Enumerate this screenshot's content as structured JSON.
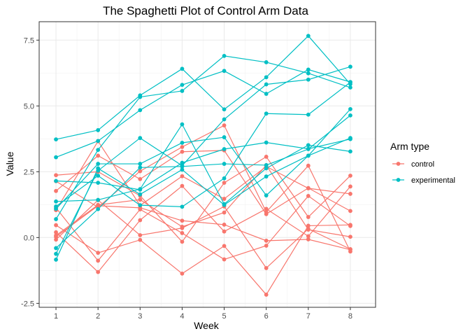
{
  "chart_data": {
    "type": "line",
    "title": "The Spaghetti Plot of Control Arm Data",
    "xlabel": "Week",
    "ylabel": "Value",
    "x": [
      1,
      2,
      3,
      4,
      5,
      6,
      7,
      8
    ],
    "xlim": [
      0.6,
      8.6
    ],
    "ylim": [
      -2.65,
      8.2
    ],
    "x_ticks": [
      "1",
      "2",
      "3",
      "4",
      "5",
      "6",
      "7",
      "8"
    ],
    "y_ticks": [
      -2.5,
      0.0,
      2.5,
      5.0,
      7.5
    ],
    "y_tick_labels": [
      "-2.5",
      "0.0",
      "2.5",
      "5.0",
      "7.5"
    ],
    "grid": true,
    "legend": {
      "title": "Arm type",
      "placement": "right",
      "entries": [
        {
          "label": "control",
          "color": "#F8766D"
        },
        {
          "label": "experimental",
          "color": "#00BFC4"
        }
      ]
    },
    "colors": {
      "control": "#F8766D",
      "experimental": "#00BFC4"
    },
    "series": [
      {
        "group": "control",
        "values": [
          0.2,
          -1.31,
          0.66,
          1.96,
          0.23,
          1.09,
          0.05,
          1.94
        ]
      },
      {
        "group": "control",
        "values": [
          1.13,
          -0.88,
          1.07,
          0.17,
          -0.83,
          -0.31,
          1.58,
          0.44
        ]
      },
      {
        "group": "control",
        "values": [
          1.77,
          3.11,
          2.22,
          3.26,
          3.31,
          0.89,
          1.88,
          1.01
        ]
      },
      {
        "group": "control",
        "values": [
          1.04,
          3.66,
          1.22,
          2.33,
          1.47,
          2.7,
          1.87,
          1.66
        ]
      },
      {
        "group": "control",
        "values": [
          0.47,
          -0.58,
          -0.09,
          -1.37,
          -0.32,
          -2.17,
          0.45,
          0.48
        ]
      },
      {
        "group": "control",
        "values": [
          2.37,
          2.5,
          1.59,
          -0.16,
          2.08,
          3.07,
          0.78,
          2.35
        ]
      },
      {
        "group": "control",
        "values": [
          0.03,
          1.21,
          1.13,
          0.64,
          0.49,
          -0.12,
          -0.07,
          -0.46
        ]
      },
      {
        "group": "control",
        "values": [
          -0.08,
          1.42,
          0.09,
          0.36,
          1.18,
          -1.16,
          0.33,
          -0.44
        ]
      },
      {
        "group": "control",
        "values": [
          0.08,
          1.24,
          1.44,
          0.41,
          0.95,
          2.75,
          0.3,
          0.03
        ]
      },
      {
        "group": "control",
        "values": [
          2.14,
          1.15,
          2.52,
          3.44,
          4.26,
          0.97,
          2.73,
          -0.53
        ]
      },
      {
        "group": "experimental",
        "values": [
          3.05,
          3.67,
          4.84,
          5.8,
          6.33,
          5.46,
          6.38,
          5.91
        ]
      },
      {
        "group": "experimental",
        "values": [
          -0.84,
          2.63,
          1.64,
          2.58,
          1.24,
          2.32,
          3.11,
          3.78
        ]
      },
      {
        "group": "experimental",
        "values": [
          2.15,
          2.08,
          1.82,
          2.84,
          3.36,
          3.61,
          3.37,
          3.74
        ]
      },
      {
        "group": "experimental",
        "values": [
          -0.62,
          2.54,
          3.78,
          2.73,
          4.49,
          5.82,
          6.0,
          6.49
        ]
      },
      {
        "group": "experimental",
        "values": [
          0.7,
          3.33,
          5.34,
          5.57,
          6.9,
          6.66,
          6.24,
          5.7
        ]
      },
      {
        "group": "experimental",
        "values": [
          3.73,
          4.08,
          5.4,
          6.41,
          4.87,
          6.09,
          7.66,
          5.83
        ]
      },
      {
        "group": "experimental",
        "values": [
          1.18,
          2.35,
          1.23,
          1.17,
          2.25,
          4.71,
          4.67,
          5.9
        ]
      },
      {
        "group": "experimental",
        "values": [
          1.37,
          1.43,
          1.84,
          4.3,
          1.27,
          2.63,
          3.51,
          3.27
        ]
      },
      {
        "group": "experimental",
        "values": [
          -0.4,
          1.08,
          2.66,
          2.7,
          2.8,
          2.75,
          3.36,
          4.64
        ]
      },
      {
        "group": "experimental",
        "values": [
          1.09,
          2.8,
          2.8,
          3.6,
          3.81,
          1.6,
          3.11,
          4.88
        ]
      }
    ]
  }
}
